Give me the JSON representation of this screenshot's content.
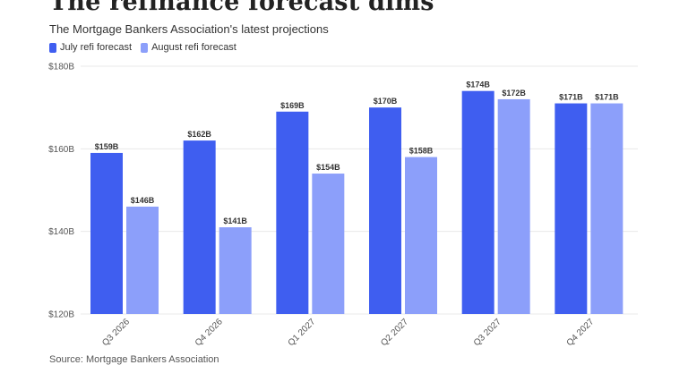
{
  "header": {
    "title": "The refinance forecast dims",
    "subtitle": "The Mortgage Bankers Association's latest projections"
  },
  "footer": {
    "source": "Source: Mortgage Bankers Association"
  },
  "colors": {
    "july": "#3f5ef0",
    "august": "#8c9ffa",
    "grid": "#e8e8e8",
    "axis_text": "#555555"
  },
  "chart_data": {
    "type": "bar",
    "categories": [
      "Q3 2026",
      "Q4 2026",
      "Q1 2027",
      "Q2 2027",
      "Q3 2027",
      "Q4 2027"
    ],
    "series": [
      {
        "name": "July refi forecast",
        "values": [
          159,
          162,
          169,
          170,
          174,
          171
        ],
        "labels": [
          "$159B",
          "$162B",
          "$169B",
          "$170B",
          "$174B",
          "$171B"
        ]
      },
      {
        "name": "August refi forecast",
        "values": [
          146,
          141,
          154,
          158,
          172,
          171
        ],
        "labels": [
          "$146B",
          "$141B",
          "$154B",
          "$158B",
          "$172B",
          "$171B"
        ]
      }
    ],
    "ylim": [
      120,
      180
    ],
    "yticks": [
      120,
      140,
      160,
      180
    ],
    "ytick_labels": [
      "$120B",
      "$140B",
      "$160B",
      "$180B"
    ],
    "grid": true,
    "legend_position": "top-left"
  }
}
